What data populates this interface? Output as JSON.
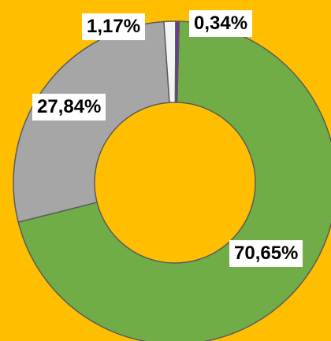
{
  "colors": {
    "background": "#FFBF00",
    "slice_stroke": "#5b5b5b",
    "label_bg": "#FFFFFF"
  },
  "chart_data": {
    "type": "pie",
    "subtype": "donut",
    "slices": [
      {
        "label_text": "70,65%",
        "value": 70.65,
        "color": "#70AD47"
      },
      {
        "label_text": "27,84%",
        "value": 27.84,
        "color": "#A6A6A6"
      },
      {
        "label_text": "1,17%",
        "value": 1.17,
        "color": "#F4F4F4"
      },
      {
        "label_text": "0,34%",
        "value": 0.34,
        "color": "#7030A0"
      }
    ]
  }
}
